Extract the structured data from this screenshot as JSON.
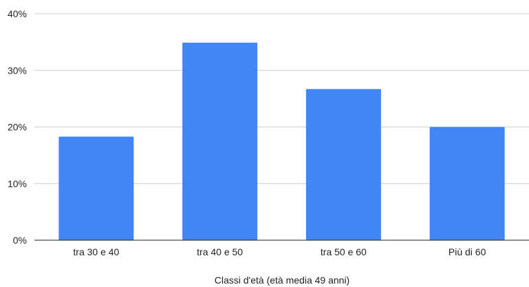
{
  "chart_data": {
    "type": "bar",
    "title": "",
    "xlabel": "Classi d'età (età media 49 anni)",
    "ylabel": "",
    "categories": [
      "tra 30 e 40",
      "tra 40 e 50",
      "tra 50 e 60",
      "Più di 60"
    ],
    "values": [
      18.3,
      34.9,
      26.7,
      20.0
    ],
    "y_unit": "%",
    "ylim": [
      0,
      40
    ],
    "yticks": [
      "0%",
      "10%",
      "20%",
      "30%",
      "40%"
    ],
    "grid": true,
    "legend": "none",
    "colors": {
      "bar": "#4285f4",
      "grid": "#cccccc",
      "axis": "#222222"
    }
  }
}
